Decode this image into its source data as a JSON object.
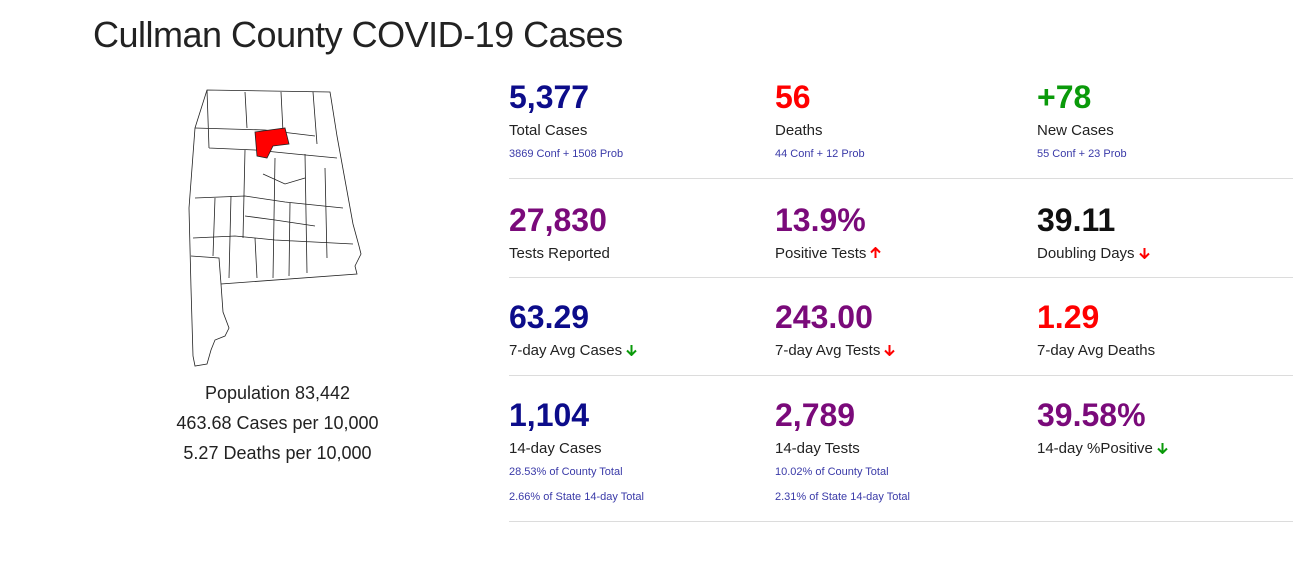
{
  "page": {
    "title": "Cullman County COVID-19 Cases"
  },
  "county": {
    "population": "Population 83,442",
    "cases_per_10k": "463.68 Cases per 10,000",
    "deaths_per_10k": "5.27 Deaths per 10,000"
  },
  "colors": {
    "navy": "#0c0c8a",
    "red": "#ff0000",
    "green": "#0a9a0a",
    "purple": "#7a0a7a",
    "black": "#111111"
  },
  "stats": [
    {
      "value": "5,377",
      "label": "Total Cases",
      "color": "#0c0c8a",
      "sub": [
        "3869 Conf + 1508 Prob"
      ]
    },
    {
      "value": "56",
      "label": "Deaths",
      "color": "#ff0000",
      "sub": [
        "44 Conf + 12 Prob"
      ]
    },
    {
      "value": "+78",
      "label": "New Cases",
      "color": "#0a9a0a",
      "sub": [
        "55 Conf + 23 Prob"
      ]
    },
    {
      "value": "27,830",
      "label": "Tests Reported",
      "color": "#7a0a7a",
      "sub": []
    },
    {
      "value": "13.9%",
      "label": "Positive Tests",
      "color": "#7a0a7a",
      "sub": [],
      "trend": "up-red-arrow"
    },
    {
      "value": "39.11",
      "label": "Doubling Days",
      "color": "#111111",
      "sub": [],
      "trend": "down-red-arrow"
    },
    {
      "value": "63.29",
      "label": "7-day Avg Cases",
      "color": "#0c0c8a",
      "sub": [],
      "trend": "down-green-arrow"
    },
    {
      "value": "243.00",
      "label": "7-day Avg Tests",
      "color": "#7a0a7a",
      "sub": [],
      "trend": "down-red-arrow"
    },
    {
      "value": "1.29",
      "label": "7-day Avg Deaths",
      "color": "#ff0000",
      "sub": []
    },
    {
      "value": "1,104",
      "label": "14-day Cases",
      "color": "#0c0c8a",
      "sub": [
        "28.53% of County Total",
        "2.66% of State 14-day Total"
      ]
    },
    {
      "value": "2,789",
      "label": "14-day Tests",
      "color": "#7a0a7a",
      "sub": [
        "10.02% of County Total",
        "2.31% of State 14-day Total"
      ]
    },
    {
      "value": "39.58%",
      "label": "14-day %Positive",
      "color": "#7a0a7a",
      "sub": [],
      "trend": "down-green-arrow"
    }
  ]
}
